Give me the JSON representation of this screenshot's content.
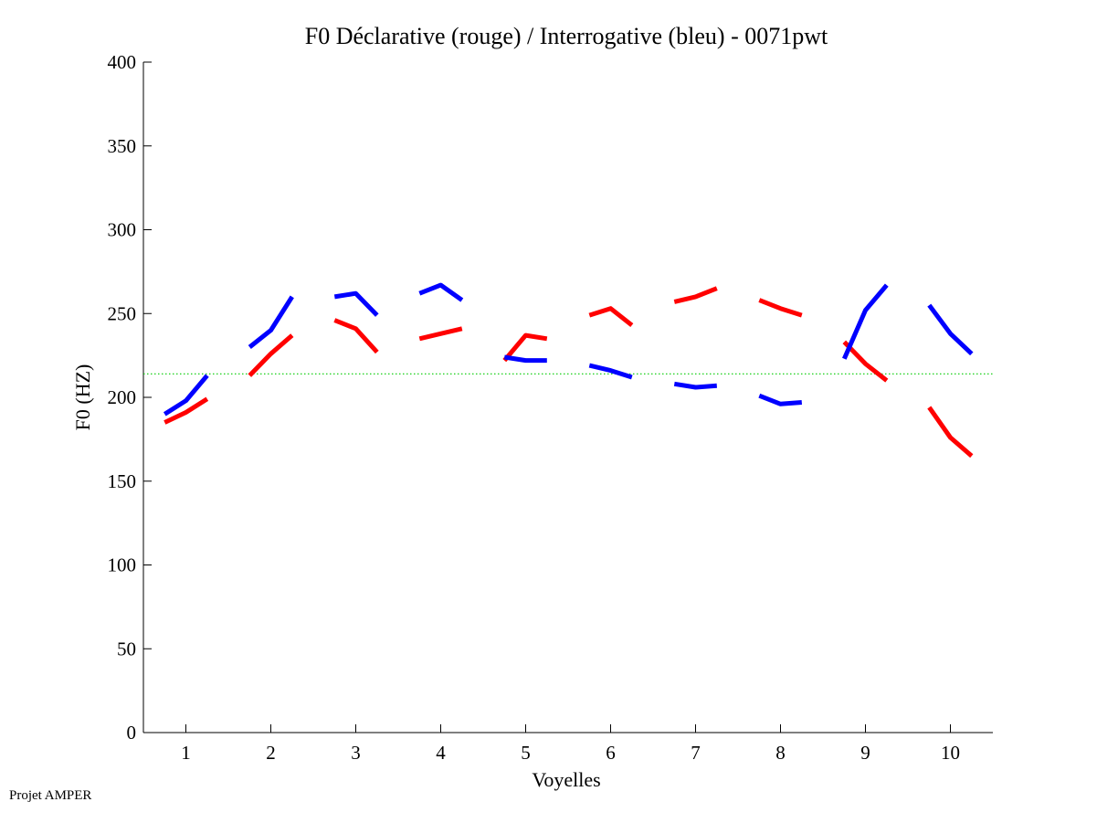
{
  "footer": "Projet AMPER",
  "chart_data": {
    "type": "line",
    "title": "F0 Déclarative (rouge) / Interrogative (bleu) - 0071pwt",
    "xlabel": "Voyelles",
    "ylabel": "F0 (HZ)",
    "xlim": [
      0.5,
      10.5
    ],
    "ylim": [
      0,
      400
    ],
    "xticks": [
      1,
      2,
      3,
      4,
      5,
      6,
      7,
      8,
      9,
      10
    ],
    "yticks": [
      0,
      50,
      100,
      150,
      200,
      250,
      300,
      350,
      400
    ],
    "grid": false,
    "reference_line": {
      "y": 214,
      "color": "#00cc00",
      "style": "dotted"
    },
    "series": [
      {
        "name": "Déclarative",
        "color": "#ff0000",
        "segments": [
          {
            "x": [
              0.75,
              1.0,
              1.25
            ],
            "y": [
              185,
              191,
              199
            ]
          },
          {
            "x": [
              1.75,
              2.0,
              2.25
            ],
            "y": [
              213,
              226,
              237
            ]
          },
          {
            "x": [
              2.75,
              3.0,
              3.25
            ],
            "y": [
              246,
              241,
              227
            ]
          },
          {
            "x": [
              3.75,
              4.0,
              4.25
            ],
            "y": [
              235,
              238,
              241
            ]
          },
          {
            "x": [
              4.75,
              5.0,
              5.25
            ],
            "y": [
              222,
              237,
              235
            ]
          },
          {
            "x": [
              5.75,
              6.0,
              6.25
            ],
            "y": [
              249,
              253,
              243
            ]
          },
          {
            "x": [
              6.75,
              7.0,
              7.25
            ],
            "y": [
              257,
              260,
              265
            ]
          },
          {
            "x": [
              7.75,
              8.0,
              8.25
            ],
            "y": [
              258,
              253,
              249
            ]
          },
          {
            "x": [
              8.75,
              9.0,
              9.25
            ],
            "y": [
              233,
              220,
              210
            ]
          },
          {
            "x": [
              9.75,
              10.0,
              10.25
            ],
            "y": [
              194,
              176,
              165
            ]
          }
        ]
      },
      {
        "name": "Interrogative",
        "color": "#0000ff",
        "segments": [
          {
            "x": [
              0.75,
              1.0,
              1.25
            ],
            "y": [
              190,
              198,
              213
            ]
          },
          {
            "x": [
              1.75,
              2.0,
              2.25
            ],
            "y": [
              230,
              240,
              260
            ]
          },
          {
            "x": [
              2.75,
              3.0,
              3.25
            ],
            "y": [
              260,
              262,
              249
            ]
          },
          {
            "x": [
              3.75,
              4.0,
              4.25
            ],
            "y": [
              262,
              267,
              258
            ]
          },
          {
            "x": [
              4.75,
              5.0,
              5.25
            ],
            "y": [
              224,
              222,
              222
            ]
          },
          {
            "x": [
              5.75,
              6.0,
              6.25
            ],
            "y": [
              219,
              216,
              212
            ]
          },
          {
            "x": [
              6.75,
              7.0,
              7.25
            ],
            "y": [
              208,
              206,
              207
            ]
          },
          {
            "x": [
              7.75,
              8.0,
              8.25
            ],
            "y": [
              201,
              196,
              197
            ]
          },
          {
            "x": [
              8.75,
              9.0,
              9.25
            ],
            "y": [
              223,
              252,
              267
            ]
          },
          {
            "x": [
              9.75,
              10.0,
              10.25
            ],
            "y": [
              255,
              238,
              226
            ]
          }
        ]
      }
    ]
  }
}
